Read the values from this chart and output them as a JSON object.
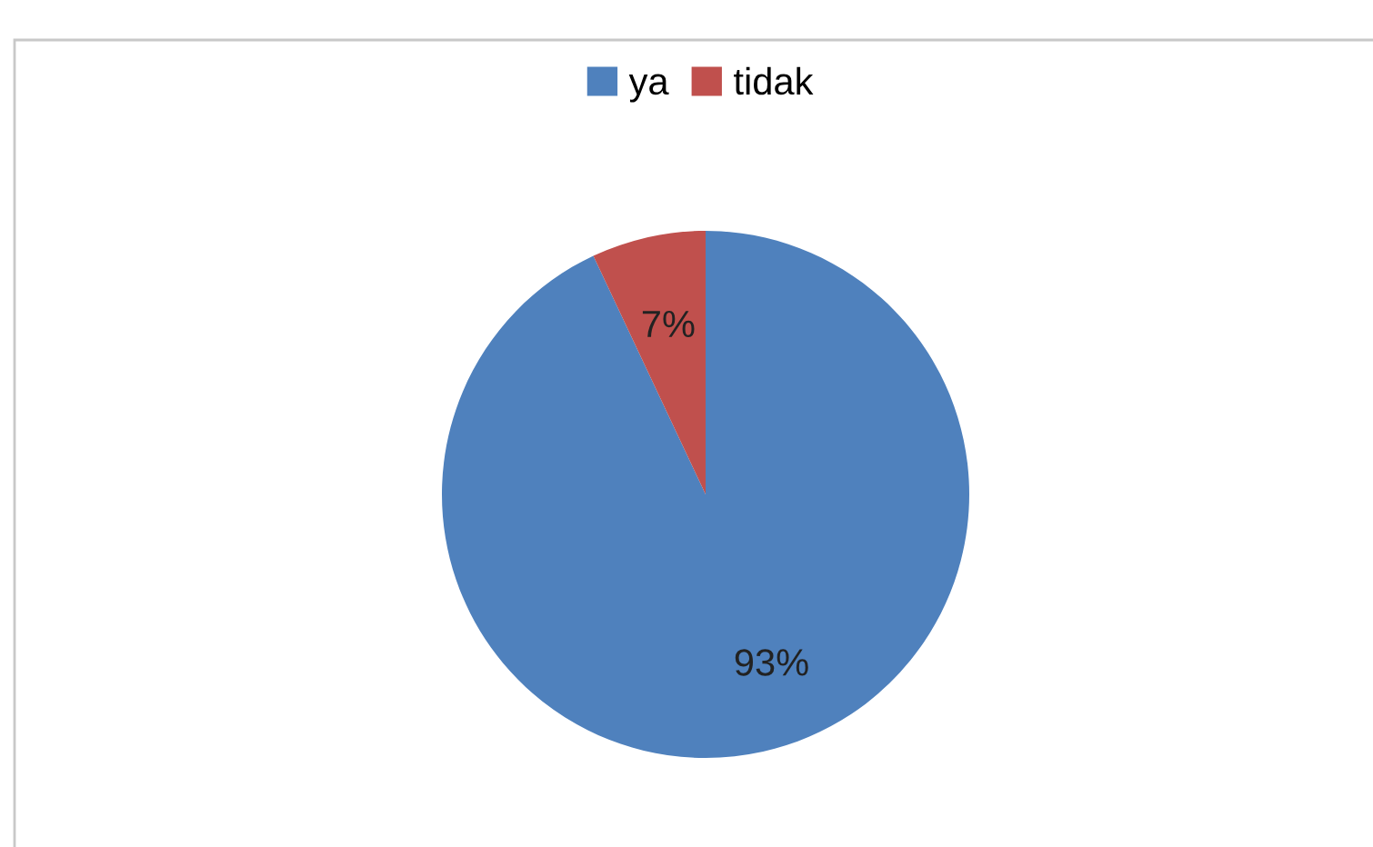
{
  "chart_data": {
    "type": "pie",
    "categories": [
      "ya",
      "tidak"
    ],
    "values": [
      93,
      7
    ],
    "colors": [
      "#4f81bd",
      "#c0504d"
    ],
    "value_labels": [
      "93%",
      "7%"
    ],
    "legend": "top"
  }
}
